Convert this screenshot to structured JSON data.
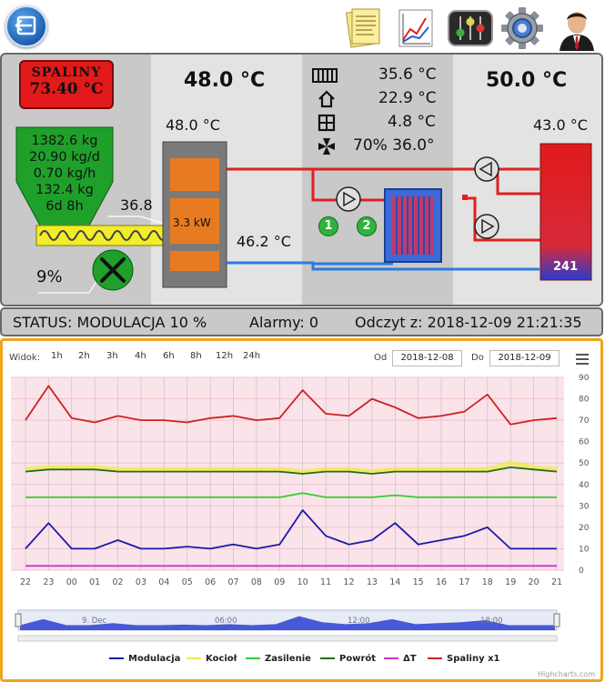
{
  "toolbar": {
    "back_icon": "back-arrow-icon",
    "icons": [
      "notes-icon",
      "chart-report-icon",
      "sliders-mixer-icon",
      "gear-icon",
      "user-profile-icon"
    ]
  },
  "panel": {
    "exhaust": {
      "label": "SPALINY",
      "value": "73.40 °C"
    },
    "hopper": {
      "lines": [
        "1382.6 kg",
        "20.90 kg/d",
        "0.70 kg/h",
        "132.4 kg",
        "6d 8h"
      ],
      "feeder_value": "36.8",
      "fan_percent": "9%"
    },
    "boiler": {
      "header_temp": "48.0 °C",
      "top_temp": "48.0 °C",
      "power": "3.3 kW",
      "return_temp": "46.2 °C"
    },
    "info": {
      "rows": [
        {
          "icon": "radiator-icon",
          "text": "35.6 °C"
        },
        {
          "icon": "house-icon",
          "text": "22.9 °C"
        },
        {
          "icon": "window-icon",
          "text": "4.8 °C"
        },
        {
          "icon": "fan-small-icon",
          "text": "70% 36.0°"
        }
      ],
      "pump1_label": "1",
      "pump2_label": "2"
    },
    "tank": {
      "header_temp": "50.0 °C",
      "top_temp": "43.0 °C",
      "bottom_label": "241"
    }
  },
  "status": {
    "status_text": "STATUS: MODULACJA 10 %",
    "alarms_text": "Alarmy: 0",
    "reading_text": "Odczyt z: 2018-12-09 21:21:35"
  },
  "chart_toolbar": {
    "view_label": "Widok:",
    "ranges": [
      "1h",
      "2h",
      "3h",
      "4h",
      "6h",
      "8h",
      "12h",
      "24h"
    ],
    "from_label": "Od",
    "from_value": "2018-12-08",
    "to_label": "Do",
    "to_value": "2018-12-09",
    "menu_icon": "hamburger-menu-icon"
  },
  "chart_data": {
    "type": "line",
    "x": [
      "22",
      "23",
      "00",
      "01",
      "02",
      "03",
      "04",
      "05",
      "06",
      "07",
      "08",
      "09",
      "10",
      "11",
      "12",
      "13",
      "14",
      "15",
      "16",
      "17",
      "18",
      "19",
      "20",
      "21"
    ],
    "ylim": [
      0,
      90
    ],
    "yticks": [
      0,
      10,
      20,
      30,
      40,
      50,
      60,
      70,
      80,
      90
    ],
    "grid": true,
    "legend_position": "bottom",
    "series": [
      {
        "name": "Modulacja",
        "color": "#1a1aa8",
        "values": [
          10,
          22,
          10,
          10,
          14,
          10,
          10,
          11,
          10,
          12,
          10,
          12,
          28,
          16,
          12,
          14,
          22,
          12,
          14,
          16,
          20,
          10,
          10,
          10
        ]
      },
      {
        "name": "Kocioł",
        "color": "#f2e84a",
        "values": [
          47,
          48,
          48,
          48,
          47,
          47,
          47,
          47,
          47,
          47,
          47,
          47,
          46,
          47,
          47,
          46,
          47,
          47,
          47,
          47,
          47,
          50,
          48,
          47
        ]
      },
      {
        "name": "Zasilenie",
        "color": "#33cc33",
        "values": [
          34,
          34,
          34,
          34,
          34,
          34,
          34,
          34,
          34,
          34,
          34,
          34,
          36,
          34,
          34,
          34,
          35,
          34,
          34,
          34,
          34,
          34,
          34,
          34
        ]
      },
      {
        "name": "Powrót",
        "color": "#1f6e1f",
        "values": [
          46,
          47,
          47,
          47,
          46,
          46,
          46,
          46,
          46,
          46,
          46,
          46,
          45,
          46,
          46,
          45,
          46,
          46,
          46,
          46,
          46,
          48,
          47,
          46
        ]
      },
      {
        "name": "ΔT",
        "color": "#cc33cc",
        "values": [
          2,
          2,
          2,
          2,
          2,
          2,
          2,
          2,
          2,
          2,
          2,
          2,
          2,
          2,
          2,
          2,
          2,
          2,
          2,
          2,
          2,
          2,
          2,
          2
        ]
      },
      {
        "name": "Spaliny x1",
        "color": "#cc2222",
        "values": [
          70,
          86,
          71,
          69,
          72,
          70,
          70,
          69,
          71,
          72,
          70,
          71,
          84,
          73,
          72,
          80,
          76,
          71,
          72,
          74,
          82,
          68,
          70,
          71
        ]
      }
    ],
    "navigator_labels": [
      "9. Dec",
      "06:00",
      "12:00",
      "18:00"
    ],
    "credit": "Highcharts.com"
  }
}
